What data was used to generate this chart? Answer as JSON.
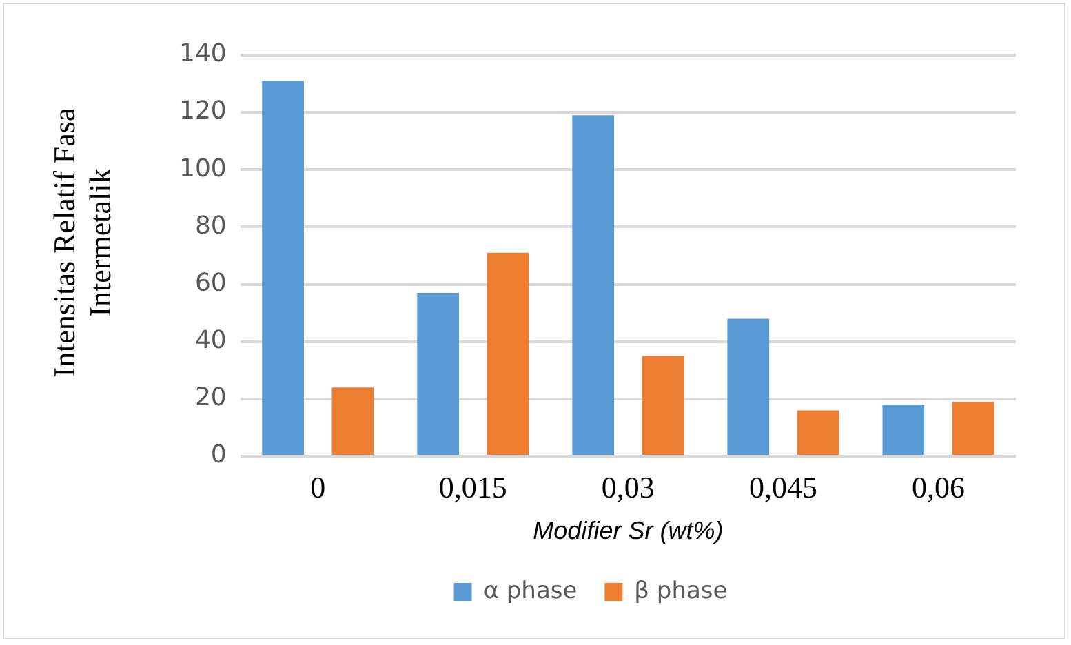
{
  "chart_data": {
    "type": "bar",
    "xlabel": "Modifier Sr (wt%)",
    "ylabel": "Intensitas Relatif Fasa Intermetalik",
    "categories": [
      "0",
      "0,015",
      "0,03",
      "0,045",
      "0,06"
    ],
    "series": [
      {
        "name": "α phase",
        "color": "#5b9bd5",
        "values": [
          131,
          57,
          119,
          48,
          18
        ]
      },
      {
        "name": "β phase",
        "color": "#ed7d31",
        "values": [
          24,
          71,
          35,
          16,
          19
        ]
      }
    ],
    "ylim": [
      0,
      140
    ],
    "yticks": [
      0,
      20,
      40,
      60,
      80,
      100,
      120,
      140
    ],
    "grid": "y",
    "legend": "bottom"
  }
}
